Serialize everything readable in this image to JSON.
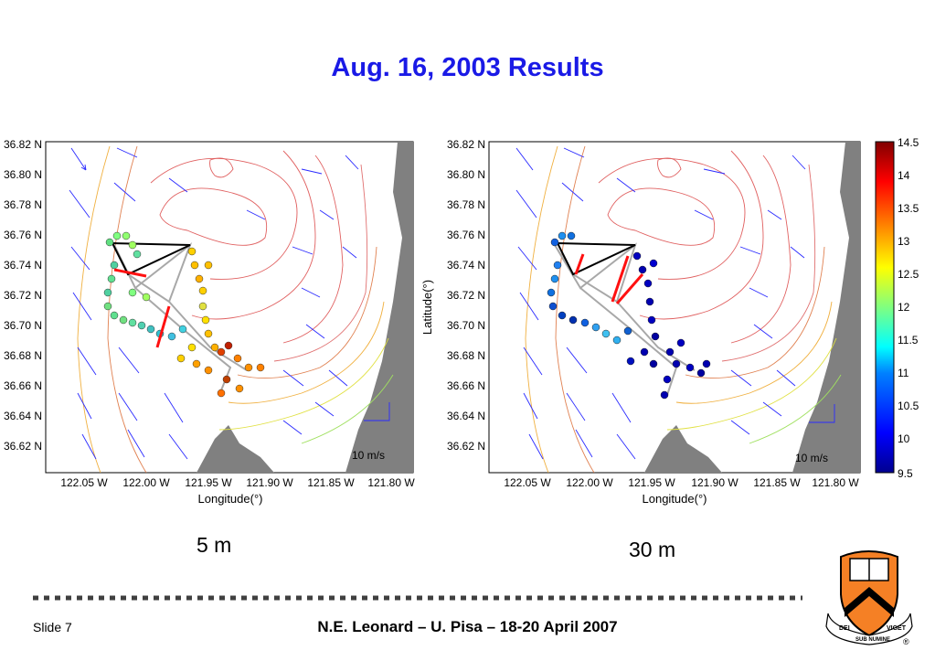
{
  "slide_title": "Aug. 16, 2003 Results",
  "captions": {
    "left": "5 m",
    "right": "30 m"
  },
  "footer": {
    "slide_number": "Slide 7",
    "center": "N.E. Leonard – U. Pisa – 18-20 April 2007"
  },
  "maps": {
    "y_ticks": [
      "36.82 N",
      "36.80 N",
      "36.78 N",
      "36.76 N",
      "36.74 N",
      "36.72 N",
      "36.70 N",
      "36.68 N",
      "36.66 N",
      "36.64 N",
      "36.62 N"
    ],
    "x_ticks": [
      "122.05 W",
      "122.00 W",
      "121.95 W",
      "121.90 W",
      "121.85 W",
      "121.80 W"
    ],
    "xlabel": "Longitude(°)",
    "ylabel": "Latitude(°)",
    "scale_label": "10 m/s"
  },
  "colorbar": {
    "ticks": [
      "14.5",
      "14",
      "13.5",
      "13",
      "12.5",
      "12",
      "11.5",
      "11",
      "10.5",
      "10",
      "9.5"
    ],
    "colors": [
      "#00008f",
      "#0000ff",
      "#0080ff",
      "#00ffff",
      "#80ff80",
      "#ffff00",
      "#ff8000",
      "#ff0000",
      "#800000"
    ]
  },
  "seal": {
    "left_ribbon": "DEI",
    "center_ribbon": "SUB NUMINE",
    "right_ribbon": "VIGET",
    "registered": "®"
  },
  "colors": {
    "title": "#1a1ae6",
    "land": "#808080",
    "arrow": "#2a2aff",
    "track": "#a8a8a8",
    "orange": "#f58025"
  }
}
